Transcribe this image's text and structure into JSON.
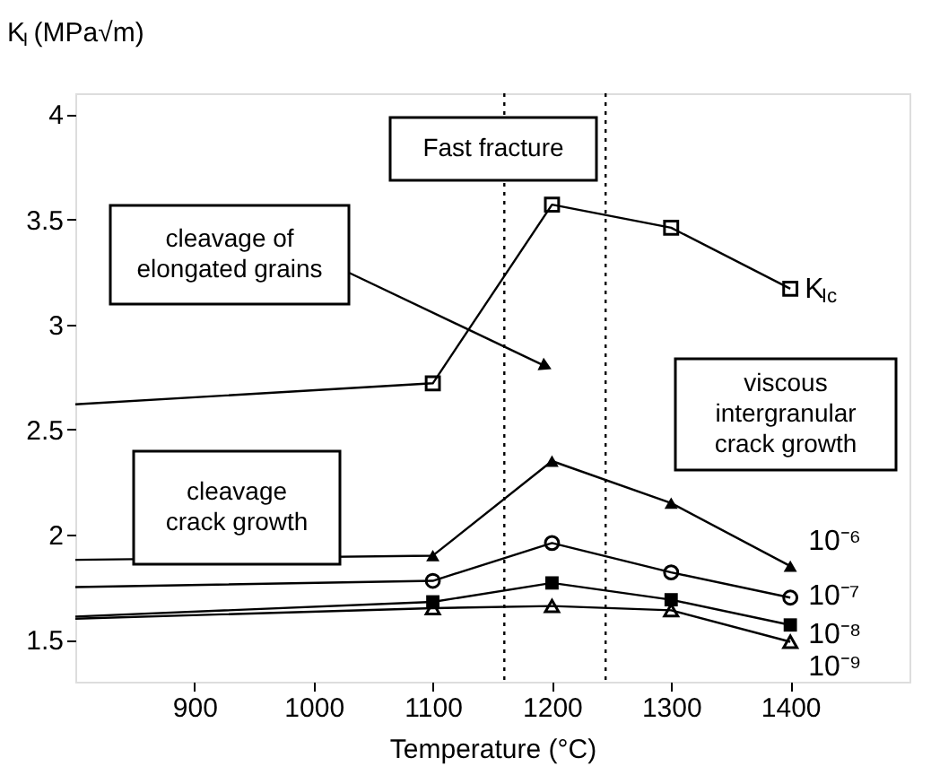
{
  "chart_data": {
    "type": "line",
    "xlabel": "Temperature (°C)",
    "ylabel": "K$_{I}$ (MPa√m)",
    "xlim": [
      800,
      1500
    ],
    "xticks": [
      900,
      1000,
      1100,
      1200,
      1300,
      1400
    ],
    "ylim": [
      1.3,
      4.1
    ],
    "yticks": [
      1.5,
      2,
      2.5,
      3,
      3.5,
      4
    ],
    "grid": false,
    "line_style": "solid",
    "series": [
      {
        "name": "K$_{Ic}$",
        "color": "#000000",
        "marker": "square",
        "x": [
          800,
          1100,
          1200,
          1300,
          1400
        ],
        "values": [
          2.62,
          2.72,
          3.57,
          3.46,
          3.17
        ]
      },
      {
        "name": "10⁻⁶",
        "color": "#000000",
        "marker": "triangle",
        "x": [
          800,
          1100,
          1200,
          1300,
          1400
        ],
        "values": [
          1.88,
          1.9,
          2.35,
          2.15,
          1.85
        ]
      },
      {
        "name": "10⁻⁷",
        "color": "#000000",
        "marker": "circle",
        "x": [
          800,
          1100,
          1200,
          1300,
          1400
        ],
        "values": [
          1.75,
          1.78,
          1.96,
          1.82,
          1.7
        ]
      },
      {
        "name": "10⁻⁸",
        "color": "#000000",
        "marker": "square",
        "x": [
          800,
          1100,
          1200,
          1300,
          1400
        ],
        "values": [
          1.61,
          1.68,
          1.77,
          1.69,
          1.57
        ]
      },
      {
        "name": "10⁻⁹",
        "color": "#000000",
        "marker": "triangle",
        "x": [
          800,
          1100,
          1200,
          1300,
          1400
        ],
        "values": [
          1.6,
          1.65,
          1.66,
          1.64,
          1.49
        ]
      }
    ],
    "ref_lines": [
      {
        "axis": "x",
        "value": 1160,
        "line_style": "dotted"
      },
      {
        "axis": "x",
        "value": 1245,
        "line_style": "dotted"
      }
    ],
    "annotations": [
      "Fast fracture",
      {
        "text": "cleavage of\nelongated grains",
        "x": 1195,
        "y": 2.8
      },
      "cleavage\ncrack growth",
      "viscous\nintergranular\ncrack growth"
    ]
  }
}
